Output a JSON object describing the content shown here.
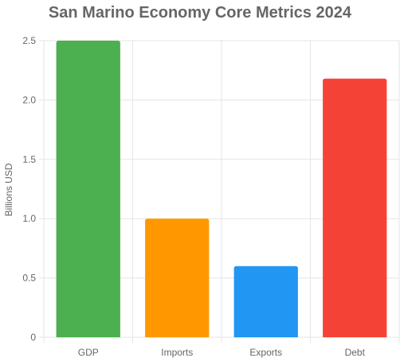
{
  "chart_data": {
    "type": "bar",
    "title": "San Marino Economy Core Metrics 2024",
    "xlabel": "",
    "ylabel": "Billions USD",
    "categories": [
      "GDP",
      "Imports",
      "Exports",
      "Debt"
    ],
    "values": [
      2.5,
      1.0,
      0.6,
      2.18
    ],
    "colors": [
      "#4caf50",
      "#ff9800",
      "#2196f3",
      "#f44336"
    ],
    "ylim": [
      0,
      2.5
    ],
    "yticks": [
      "0",
      "0.5",
      "1.0",
      "1.5",
      "2.0",
      "2.5"
    ],
    "ytick_values": [
      0,
      0.5,
      1.0,
      1.5,
      2.0,
      2.5
    ],
    "grid": true,
    "legend": "none"
  }
}
